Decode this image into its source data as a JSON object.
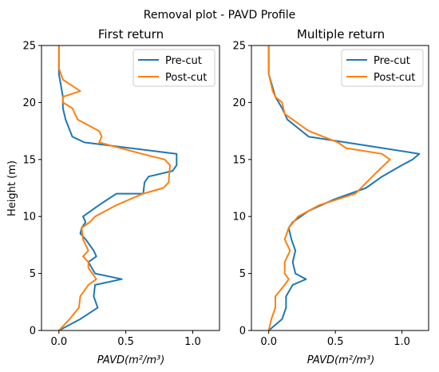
{
  "figure_title": "Removal plot - PAVD Profile",
  "colors": {
    "pre_cut": "#1f77b4",
    "post_cut": "#ff7f0e"
  },
  "chart_data": [
    {
      "type": "line",
      "title": "First return",
      "xlabel": "PAVD(m²/m³)",
      "ylabel": "Height (m)",
      "xlim": [
        -0.13,
        1.2
      ],
      "ylim": [
        0,
        25
      ],
      "xticks": [
        0.0,
        0.5,
        1.0
      ],
      "xtick_labels": [
        "0.0",
        "0.5",
        "1.0"
      ],
      "yticks": [
        0,
        5,
        10,
        15,
        20,
        25
      ],
      "ytick_labels": [
        "0",
        "5",
        "10",
        "15",
        "20",
        "25"
      ],
      "legend_position": "top-right",
      "series": [
        {
          "name": "Pre-cut",
          "x": [
            0.0,
            0.16,
            0.29,
            0.26,
            0.27,
            0.47,
            0.27,
            0.22,
            0.28,
            0.26,
            0.2,
            0.16,
            0.17,
            0.2,
            0.18,
            0.3,
            0.43,
            0.63,
            0.64,
            0.67,
            0.85,
            0.88,
            0.88,
            0.19,
            0.1,
            0.05,
            0.03,
            0.03,
            0.0,
            0.0,
            0.0
          ],
          "y": [
            0,
            1,
            2,
            3,
            4,
            4.5,
            5,
            6,
            6.5,
            7,
            8,
            8.5,
            9,
            9.5,
            10,
            11,
            12,
            12,
            13,
            13.5,
            14,
            14.5,
            15.5,
            16.5,
            17,
            18.5,
            19.5,
            20.5,
            22.5,
            22.5,
            25
          ]
        },
        {
          "name": "Post-cut",
          "x": [
            0.0,
            0.08,
            0.15,
            0.16,
            0.22,
            0.28,
            0.22,
            0.22,
            0.18,
            0.22,
            0.18,
            0.17,
            0.23,
            0.27,
            0.43,
            0.63,
            0.78,
            0.82,
            0.83,
            0.79,
            0.62,
            0.3,
            0.32,
            0.3,
            0.14,
            0.1,
            0.03,
            0.03,
            0.16,
            0.03,
            0.0,
            0.0
          ],
          "y": [
            0,
            1,
            2,
            3,
            4,
            4.5,
            5.5,
            6,
            6.5,
            7,
            8,
            9,
            9.5,
            10,
            11,
            12,
            12.5,
            13,
            14.5,
            15,
            15.5,
            16.5,
            17,
            17.5,
            18.5,
            19.5,
            20,
            20.5,
            21,
            22,
            23,
            25
          ]
        }
      ]
    },
    {
      "type": "line",
      "title": "Multiple return",
      "xlabel": "PAVD(m²/m³)",
      "ylabel": "",
      "xlim": [
        -0.13,
        1.2
      ],
      "ylim": [
        0,
        25
      ],
      "xticks": [
        0.0,
        0.5,
        1.0
      ],
      "xtick_labels": [
        "0.0",
        "0.5",
        "1.0"
      ],
      "yticks": [
        0,
        5,
        10,
        15,
        20,
        25
      ],
      "ytick_labels": [
        "0",
        "5",
        "10",
        "15",
        "20",
        "25"
      ],
      "legend_position": "top-right",
      "series": [
        {
          "name": "Pre-cut",
          "x": [
            0.0,
            0.1,
            0.13,
            0.13,
            0.18,
            0.28,
            0.2,
            0.18,
            0.2,
            0.17,
            0.15,
            0.18,
            0.3,
            0.49,
            0.73,
            0.85,
            1.0,
            1.08,
            1.13,
            0.58,
            0.3,
            0.14,
            0.1,
            0.05,
            0.0,
            0.0
          ],
          "y": [
            0,
            1,
            2,
            3,
            4,
            4.5,
            5,
            6,
            7,
            8,
            9,
            9.5,
            10.5,
            11.5,
            12.5,
            13.5,
            14.5,
            15,
            15.5,
            16.5,
            17,
            18.5,
            19.5,
            20.5,
            22.5,
            25
          ]
        },
        {
          "name": "Post-cut",
          "x": [
            0.0,
            0.02,
            0.05,
            0.05,
            0.12,
            0.15,
            0.12,
            0.12,
            0.16,
            0.12,
            0.15,
            0.22,
            0.38,
            0.65,
            0.82,
            0.91,
            0.85,
            0.58,
            0.52,
            0.3,
            0.12,
            0.1,
            0.05,
            0.03,
            0.0,
            0.0
          ],
          "y": [
            0,
            1,
            2,
            3,
            4,
            4.5,
            5,
            6,
            7,
            8,
            9,
            10,
            11,
            12,
            14,
            15,
            15.5,
            16,
            16.5,
            17.5,
            19,
            20,
            20.5,
            21,
            22.5,
            25
          ]
        }
      ]
    }
  ]
}
